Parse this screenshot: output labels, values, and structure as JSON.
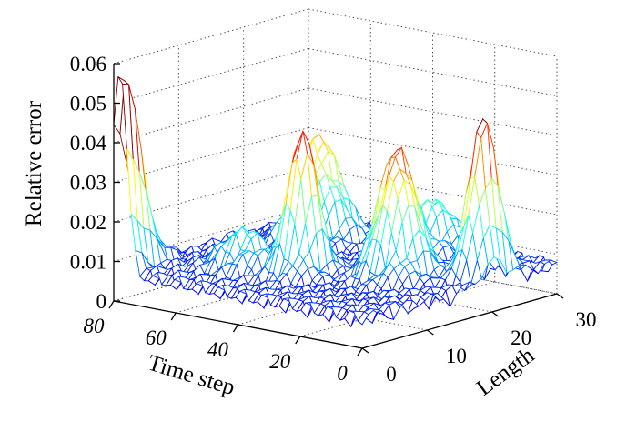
{
  "chart_data": {
    "type": "surface",
    "title": "",
    "zlabel": "Relative error",
    "xlabel": "Time step",
    "ylabel": "Length",
    "zlim": [
      0,
      0.06
    ],
    "xlim": [
      0,
      80
    ],
    "ylim": [
      0,
      30
    ],
    "z_ticks": [
      "0",
      "0.01",
      "0.02",
      "0.03",
      "0.04",
      "0.05",
      "0.06"
    ],
    "x_ticks": [
      "0",
      "20",
      "40",
      "60",
      "80"
    ],
    "y_ticks": [
      "0",
      "10",
      "20",
      "30"
    ],
    "grid": true,
    "colormap": [
      "#000090",
      "#0000ff",
      "#00a0ff",
      "#00ffff",
      "#80ff80",
      "#ffff00",
      "#ff8000",
      "#ff0000",
      "#800000"
    ],
    "approx_features": [
      {
        "time_step": 78,
        "length": 0,
        "relative_error": 0.056
      },
      {
        "time_step": 40,
        "length": 10,
        "relative_error": 0.044
      },
      {
        "time_step": 20,
        "length": 15,
        "relative_error": 0.04
      },
      {
        "time_step": 5,
        "length": 21,
        "relative_error": 0.046
      },
      {
        "time_step": 60,
        "length": 22,
        "relative_error": 0.032
      },
      {
        "time_step": 45,
        "length": 3,
        "relative_error": 0.006
      }
    ]
  }
}
